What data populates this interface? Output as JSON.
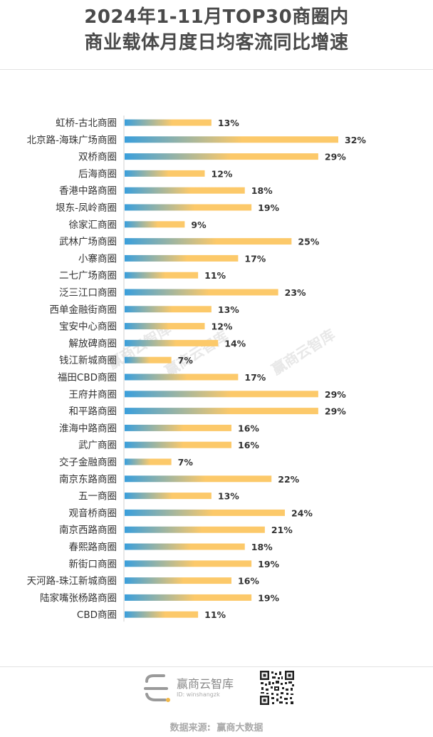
{
  "title": {
    "line1": "2024年1-11月TOP30商圈内",
    "line2": "商业载体月度日均客流同比增速"
  },
  "watermark": "赢商云智库",
  "footer": {
    "brand": "赢商云智库",
    "brand_id": "ID: winshangzk",
    "source_label": "数据来源:",
    "source_value": "赢商大数据"
  },
  "colors": {
    "bar_start": "#3a9fdc",
    "bar_end": "#fcc96a",
    "axis": "#d0d0d0"
  },
  "chart_data": {
    "type": "bar",
    "orientation": "horizontal",
    "categories": [
      "虹桥-古北商圈",
      "北京路-海珠广场商圈",
      "双桥商圈",
      "后海商圈",
      "香港中路商圈",
      "垠东-凤岭商圈",
      "徐家汇商圈",
      "武林广场商圈",
      "小寨商圈",
      "二七广场商圈",
      "泛三江口商圈",
      "西单金融街商圈",
      "宝安中心商圈",
      "解放碑商圈",
      "钱江新城商圈",
      "福田CBD商圈",
      "王府井商圈",
      "和平路商圈",
      "淮海中路商圈",
      "武广商圈",
      "交子金融商圈",
      "南京东路商圈",
      "五一商圈",
      "观音桥商圈",
      "南京西路商圈",
      "春熙路商圈",
      "新街口商圈",
      "天河路-珠江新城商圈",
      "陆家嘴张杨路商圈",
      "CBD商圈"
    ],
    "values": [
      13,
      32,
      29,
      12,
      18,
      19,
      9,
      25,
      17,
      11,
      23,
      13,
      12,
      14,
      7,
      17,
      29,
      29,
      16,
      16,
      7,
      22,
      13,
      24,
      21,
      18,
      19,
      16,
      19,
      11
    ],
    "value_labels": [
      "13%",
      "32%",
      "29%",
      "12%",
      "18%",
      "19%",
      "9%",
      "25%",
      "17%",
      "11%",
      "23%",
      "13%",
      "12%",
      "14%",
      "7%",
      "17%",
      "29%",
      "29%",
      "16%",
      "16%",
      "7%",
      "22%",
      "13%",
      "24%",
      "21%",
      "18%",
      "19%",
      "16%",
      "19%",
      "11%"
    ],
    "unit": "%",
    "xlim": [
      0,
      32
    ]
  }
}
